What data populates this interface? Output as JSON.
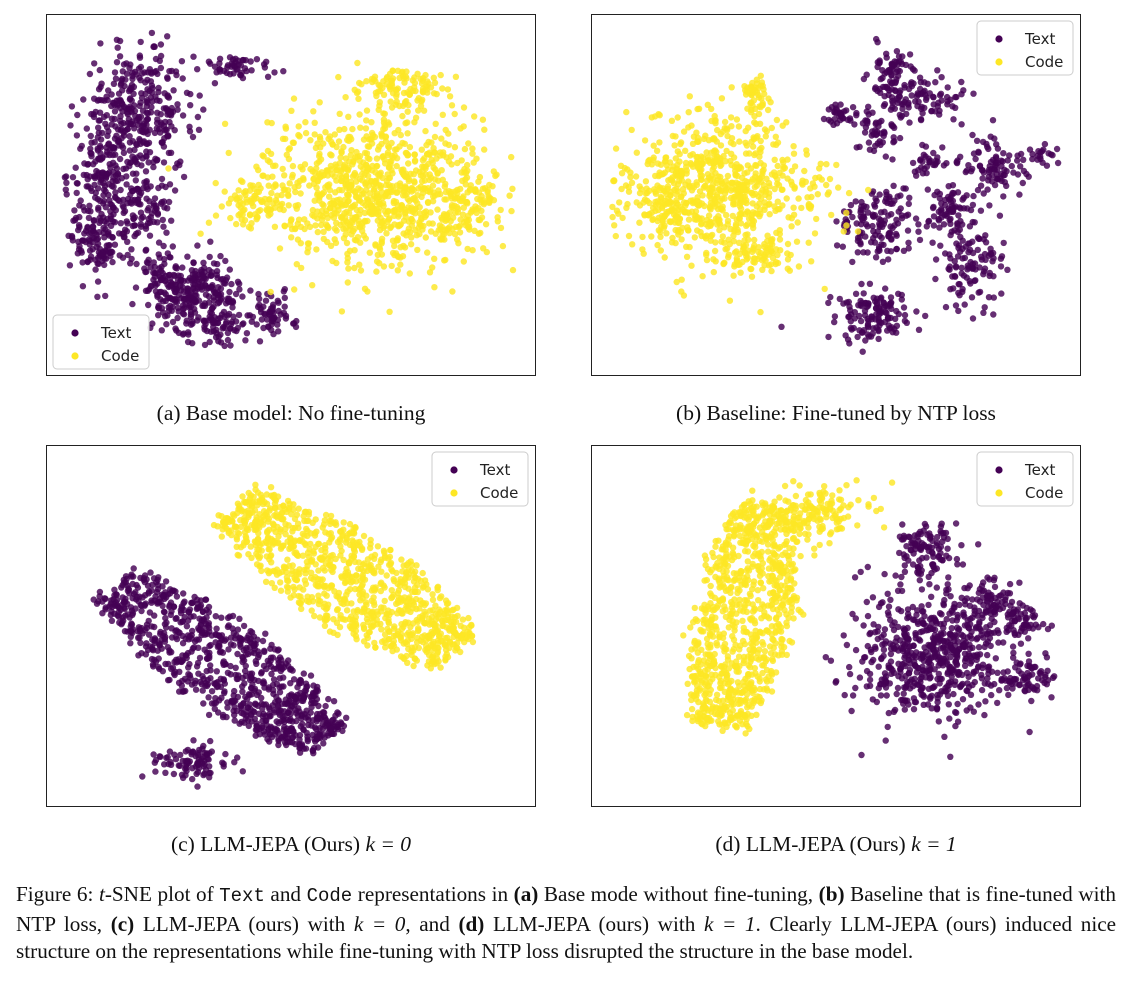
{
  "figure": {
    "label": "Figure 6:",
    "caption_parts": [
      {
        "kind": "math",
        "text": "t"
      },
      {
        "kind": "text",
        "text": "-SNE plot of "
      },
      {
        "kind": "tt",
        "text": "Text"
      },
      {
        "kind": "text",
        "text": " and "
      },
      {
        "kind": "tt",
        "text": "Code"
      },
      {
        "kind": "text",
        "text": " representations in "
      },
      {
        "kind": "bold",
        "text": "(a)"
      },
      {
        "kind": "text",
        "text": " Base mode without fine-tuning, "
      },
      {
        "kind": "bold",
        "text": "(b)"
      },
      {
        "kind": "text",
        "text": " Baseline that is fine-tuned with NTP loss, "
      },
      {
        "kind": "bold",
        "text": "(c)"
      },
      {
        "kind": "text",
        "text": " LLM-JEPA (ours) with "
      },
      {
        "kind": "math",
        "text": "k = 0"
      },
      {
        "kind": "text",
        "text": ", and "
      },
      {
        "kind": "bold",
        "text": "(d)"
      },
      {
        "kind": "text",
        "text": " LLM-JEPA (ours) with "
      },
      {
        "kind": "math",
        "text": "k = 1"
      },
      {
        "kind": "text",
        "text": ". Clearly LLM-JEPA (ours) induced nice structure on the representations while fine-tuning with NTP loss disrupted the structure in the base model."
      }
    ]
  },
  "colors": {
    "Text": "#440154",
    "Code": "#fde725",
    "frame": "#222222"
  },
  "chart_data": [
    {
      "type": "scatter",
      "panel": "a",
      "caption_prefix": "(a) Base model: No fine-tuning",
      "caption_math": "",
      "legend": {
        "entries": [
          "Text",
          "Code"
        ],
        "position": "bottom-left"
      },
      "xlim": [
        0,
        100
      ],
      "ylim": [
        0,
        100
      ],
      "grid": false,
      "axes_ticks": false,
      "series": [
        {
          "name": "Text",
          "color": "#440154",
          "clusters": [
            {
              "cx": 17,
              "cy": 74,
              "sx": 6.0,
              "sy": 10.0,
              "n": 340
            },
            {
              "cx": 10,
              "cy": 56,
              "sx": 4.0,
              "sy": 8.0,
              "n": 150
            },
            {
              "cx": 8,
              "cy": 36,
              "sx": 3.5,
              "sy": 5.5,
              "n": 120
            },
            {
              "cx": 18,
              "cy": 46,
              "sx": 3.5,
              "sy": 5.0,
              "n": 80
            },
            {
              "cx": 30,
              "cy": 20,
              "sx": 4.5,
              "sy": 6.0,
              "n": 260
            },
            {
              "cx": 22,
              "cy": 26,
              "sx": 2.5,
              "sy": 4.0,
              "n": 60
            },
            {
              "cx": 46,
              "cy": 14,
              "sx": 2.5,
              "sy": 3.0,
              "n": 60
            },
            {
              "cx": 38,
              "cy": 88,
              "sx": 4.0,
              "sy": 2.0,
              "n": 50
            },
            {
              "cx": 36,
              "cy": 10,
              "sx": 3.0,
              "sy": 2.5,
              "n": 40
            }
          ]
        },
        {
          "name": "Code",
          "color": "#fde725",
          "clusters": [
            {
              "cx": 68,
              "cy": 52,
              "sx": 12.0,
              "sy": 11.5,
              "n": 900
            },
            {
              "cx": 74,
              "cy": 82,
              "sx": 4.5,
              "sy": 3.0,
              "n": 100
            },
            {
              "cx": 42,
              "cy": 48,
              "sx": 3.5,
              "sy": 4.5,
              "n": 80
            },
            {
              "cx": 87,
              "cy": 46,
              "sx": 3.5,
              "sy": 5.0,
              "n": 100
            }
          ]
        }
      ]
    },
    {
      "type": "scatter",
      "panel": "b",
      "caption_prefix": "(b) Baseline: Fine-tuned by NTP loss",
      "caption_math": "",
      "legend": {
        "entries": [
          "Text",
          "Code"
        ],
        "position": "top-right"
      },
      "xlim": [
        0,
        100
      ],
      "ylim": [
        0,
        100
      ],
      "grid": false,
      "axes_ticks": false,
      "series": [
        {
          "name": "Text",
          "color": "#440154",
          "clusters": [
            {
              "cx": 62,
              "cy": 86,
              "sx": 2.5,
              "sy": 5.0,
              "n": 70
            },
            {
              "cx": 69,
              "cy": 78,
              "sx": 4.5,
              "sy": 3.5,
              "n": 90
            },
            {
              "cx": 52,
              "cy": 74,
              "sx": 2.0,
              "sy": 1.8,
              "n": 35
            },
            {
              "cx": 59,
              "cy": 69,
              "sx": 2.0,
              "sy": 4.0,
              "n": 45
            },
            {
              "cx": 70,
              "cy": 60,
              "sx": 1.8,
              "sy": 2.2,
              "n": 30
            },
            {
              "cx": 84,
              "cy": 58,
              "sx": 3.5,
              "sy": 4.5,
              "n": 90
            },
            {
              "cx": 59,
              "cy": 41,
              "sx": 4.5,
              "sy": 5.5,
              "n": 140
            },
            {
              "cx": 75,
              "cy": 46,
              "sx": 2.5,
              "sy": 3.5,
              "n": 70
            },
            {
              "cx": 79,
              "cy": 29,
              "sx": 3.5,
              "sy": 6.0,
              "n": 110
            },
            {
              "cx": 58,
              "cy": 14,
              "sx": 4.5,
              "sy": 3.8,
              "n": 130
            },
            {
              "cx": 95,
              "cy": 62,
              "sx": 1.2,
              "sy": 1.5,
              "n": 18
            }
          ]
        },
        {
          "name": "Code",
          "color": "#fde725",
          "clusters": [
            {
              "cx": 25,
              "cy": 52,
              "sx": 11.0,
              "sy": 11.0,
              "n": 700
            },
            {
              "cx": 12,
              "cy": 47,
              "sx": 4.5,
              "sy": 6.0,
              "n": 100
            },
            {
              "cx": 33,
              "cy": 80,
              "sx": 1.6,
              "sy": 2.8,
              "n": 45
            },
            {
              "cx": 33,
              "cy": 32,
              "sx": 5.0,
              "sy": 3.0,
              "n": 80
            }
          ]
        }
      ]
    },
    {
      "type": "scatter",
      "panel": "c",
      "caption_prefix": "(c) LLM-JEPA (Ours) ",
      "caption_math": "k = 0",
      "legend": {
        "entries": [
          "Text",
          "Code"
        ],
        "position": "top-right"
      },
      "xlim": [
        0,
        100
      ],
      "ylim": [
        0,
        100
      ],
      "grid": false,
      "axes_ticks": false,
      "series": [
        {
          "name": "Text",
          "color": "#440154",
          "band": {
            "x1": 12,
            "y1": 62,
            "x2": 58,
            "y2": 16,
            "half_width": 12,
            "n": 900
          },
          "clusters": [
            {
              "cx": 28,
              "cy": 9,
              "sx": 4.0,
              "sy": 2.5,
              "n": 90
            }
          ]
        },
        {
          "name": "Code",
          "color": "#fde725",
          "band": {
            "x1": 38,
            "y1": 86,
            "x2": 86,
            "y2": 42,
            "half_width": 13,
            "n": 1000
          },
          "clusters": []
        }
      ]
    },
    {
      "type": "scatter",
      "panel": "d",
      "caption_prefix": "(d) LLM-JEPA (Ours) ",
      "caption_math": "k = 1",
      "legend": {
        "entries": [
          "Text",
          "Code"
        ],
        "position": "top-right"
      },
      "xlim": [
        0,
        100
      ],
      "ylim": [
        0,
        100
      ],
      "grid": false,
      "axes_ticks": false,
      "series": [
        {
          "name": "Text",
          "color": "#440154",
          "clusters": [
            {
              "cx": 71,
              "cy": 41,
              "sx": 8.5,
              "sy": 9.5,
              "n": 600
            },
            {
              "cx": 70,
              "cy": 72,
              "sx": 3.5,
              "sy": 4.5,
              "n": 110
            },
            {
              "cx": 83,
              "cy": 56,
              "sx": 3.0,
              "sy": 4.5,
              "n": 90
            },
            {
              "cx": 92,
              "cy": 35,
              "sx": 3.0,
              "sy": 3.5,
              "n": 60
            },
            {
              "cx": 89,
              "cy": 52,
              "sx": 2.5,
              "sy": 3.0,
              "n": 50
            }
          ]
        },
        {
          "name": "Code",
          "color": "#fde725",
          "band": {
            "x1": 25,
            "y1": 20,
            "x2": 35,
            "y2": 86,
            "half_width": 11,
            "n": 900
          },
          "clusters": [
            {
              "cx": 45,
              "cy": 84,
              "sx": 7.0,
              "sy": 4.0,
              "n": 150
            }
          ]
        }
      ]
    }
  ]
}
